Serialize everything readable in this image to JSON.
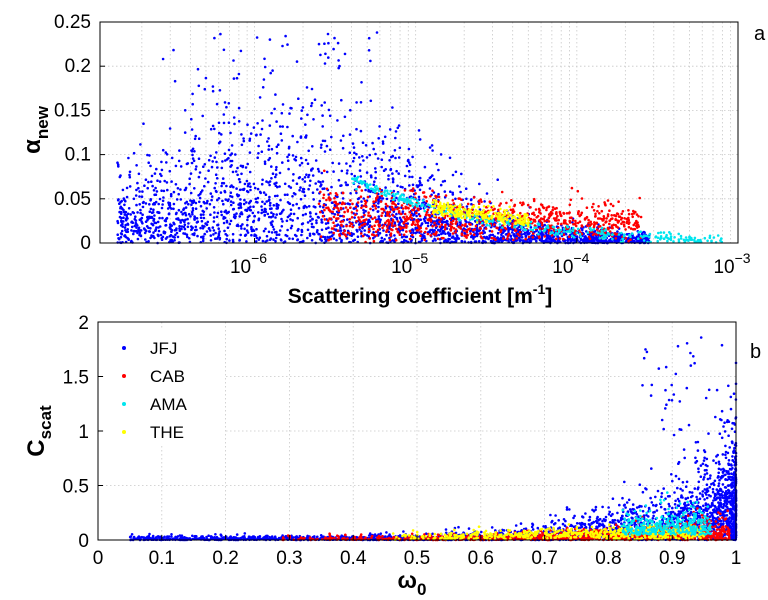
{
  "colors": {
    "JFJ": "#0000ff",
    "CAB": "#ff0000",
    "AMA": "#00e5ee",
    "THE": "#ffff00",
    "grid": "#c8c8c8",
    "axis": "#000000"
  },
  "chart_data": [
    {
      "type": "scatter",
      "panel_label": "a",
      "xlabel": "Scattering coefficient [m",
      "xlabel_sup": "-1",
      "xlabel_close": "]",
      "ylabel": "α",
      "ylabel_sub": "new",
      "xscale": "log",
      "xlim": [
        1.1e-07,
        0.001
      ],
      "ylim": [
        0,
        0.25
      ],
      "grid": true,
      "x_ticks": [
        {
          "value": 1e-06,
          "base": "10",
          "exp": "−6"
        },
        {
          "value": 1e-05,
          "base": "10",
          "exp": "−5"
        },
        {
          "value": 0.0001,
          "base": "10",
          "exp": "−4"
        },
        {
          "value": 0.001,
          "base": "10",
          "exp": "−3"
        }
      ],
      "y_ticks": [
        {
          "value": 0,
          "label": "0"
        },
        {
          "value": 0.05,
          "label": "0.05"
        },
        {
          "value": 0.1,
          "label": "0.1"
        },
        {
          "value": 0.15,
          "label": "0.15"
        },
        {
          "value": 0.2,
          "label": "0.2"
        },
        {
          "value": 0.25,
          "label": "0.25"
        }
      ],
      "series": [
        {
          "name": "JFJ",
          "x": [
            1.5e-07,
            3e-07,
            5e-07,
            7e-07,
            1e-06,
            1.5e-06,
            2e-06,
            3e-06,
            5e-06,
            7e-06,
            1e-05,
            2e-05,
            4e-05,
            7e-05,
            0.0001,
            0.0002
          ],
          "y": [
            0.01,
            0.03,
            0.05,
            0.08,
            0.07,
            0.06,
            0.05,
            0.045,
            0.04,
            0.035,
            0.03,
            0.025,
            0.02,
            0.015,
            0.012,
            0.008
          ]
        },
        {
          "name": "CAB",
          "x": [
            2e-06,
            4e-06,
            6e-06,
            1e-05,
            2e-05,
            4e-05,
            7e-05,
            0.0001,
            0.0002
          ],
          "y": [
            0.01,
            0.03,
            0.035,
            0.03,
            0.025,
            0.02,
            0.018,
            0.015,
            0.01
          ]
        },
        {
          "name": "AMA",
          "x": [
            4e-06,
            6e-06,
            1e-05,
            2e-05,
            4e-05,
            7e-05,
            0.0001,
            0.0002,
            0.0004,
            0.0008
          ],
          "y": [
            0.09,
            0.07,
            0.055,
            0.045,
            0.035,
            0.028,
            0.022,
            0.016,
            0.011,
            0.007
          ]
        },
        {
          "name": "THE",
          "x": [
            1.5e-05,
            2e-05,
            3e-05,
            4e-05,
            5e-05
          ],
          "y": [
            0.045,
            0.038,
            0.032,
            0.028,
            0.025
          ]
        }
      ]
    },
    {
      "type": "scatter",
      "panel_label": "b",
      "xlabel": "ω",
      "xlabel_sub": "0",
      "ylabel": "C",
      "ylabel_sub": "scat",
      "xlim": [
        0,
        1
      ],
      "ylim": [
        0,
        2
      ],
      "grid": true,
      "legend_position": "top-left",
      "x_ticks": [
        {
          "value": 0,
          "label": "0"
        },
        {
          "value": 0.1,
          "label": "0.1"
        },
        {
          "value": 0.2,
          "label": "0.2"
        },
        {
          "value": 0.3,
          "label": "0.3"
        },
        {
          "value": 0.4,
          "label": "0.4"
        },
        {
          "value": 0.5,
          "label": "0.5"
        },
        {
          "value": 0.6,
          "label": "0.6"
        },
        {
          "value": 0.7,
          "label": "0.7"
        },
        {
          "value": 0.8,
          "label": "0.8"
        },
        {
          "value": 0.9,
          "label": "0.9"
        },
        {
          "value": 1,
          "label": "1"
        }
      ],
      "y_ticks": [
        {
          "value": 0,
          "label": "0"
        },
        {
          "value": 0.5,
          "label": "0.5"
        },
        {
          "value": 1,
          "label": "1"
        },
        {
          "value": 1.5,
          "label": "1.5"
        },
        {
          "value": 2,
          "label": "2"
        }
      ],
      "series": [
        {
          "name": "JFJ",
          "x": [
            0.1,
            0.3,
            0.5,
            0.6,
            0.7,
            0.8,
            0.85,
            0.9,
            0.93,
            0.95,
            0.97,
            0.99
          ],
          "y": [
            0.02,
            0.05,
            0.1,
            0.15,
            0.2,
            0.3,
            0.4,
            0.5,
            0.6,
            0.8,
            0.9,
            0.5
          ]
        },
        {
          "name": "CAB",
          "x": [
            0.3,
            0.5,
            0.6,
            0.7,
            0.8,
            0.9,
            0.95
          ],
          "y": [
            0.01,
            0.03,
            0.05,
            0.08,
            0.12,
            0.18,
            0.2
          ]
        },
        {
          "name": "AMA",
          "x": [
            0.82,
            0.85,
            0.88,
            0.9,
            0.92,
            0.95
          ],
          "y": [
            0.1,
            0.2,
            0.25,
            0.3,
            0.25,
            0.15
          ]
        },
        {
          "name": "THE",
          "x": [
            0.5,
            0.6,
            0.7,
            0.8,
            0.85,
            0.9
          ],
          "y": [
            0.02,
            0.04,
            0.06,
            0.1,
            0.12,
            0.15
          ]
        }
      ]
    }
  ]
}
